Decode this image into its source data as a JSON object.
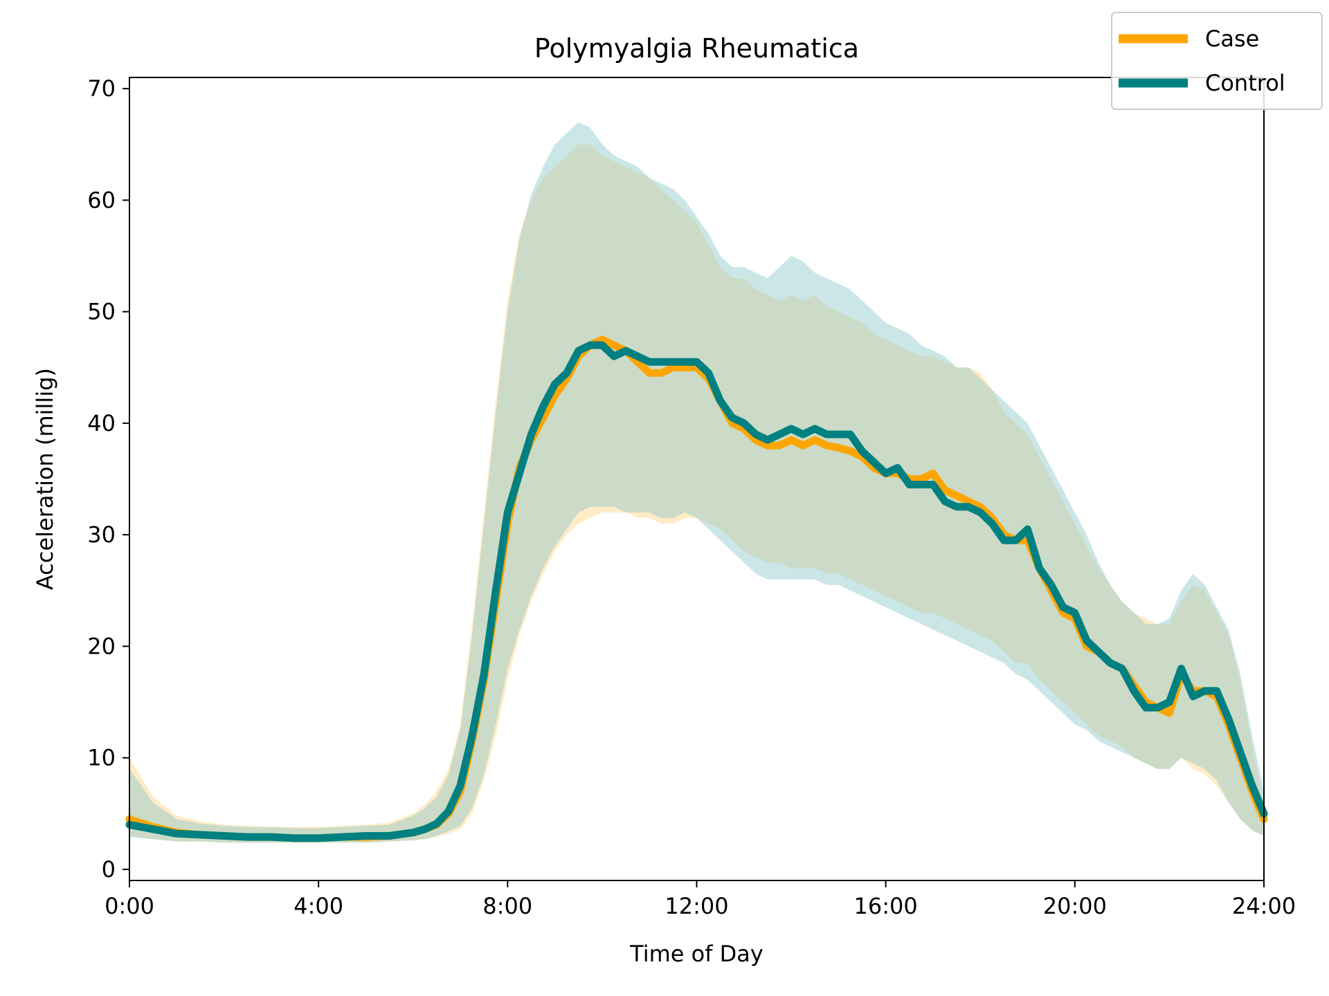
{
  "chart_data": {
    "type": "line",
    "title": "Polymyalgia Rheumatica",
    "xlabel": "Time of Day",
    "ylabel": "Acceleration (millig)",
    "xlim": [
      0,
      24
    ],
    "ylim": [
      -1,
      71
    ],
    "x_ticks": [
      0,
      4,
      8,
      12,
      16,
      20,
      24
    ],
    "x_tick_labels": [
      "0:00",
      "4:00",
      "8:00",
      "12:00",
      "16:00",
      "20:00",
      "24:00"
    ],
    "y_ticks": [
      0,
      10,
      20,
      30,
      40,
      50,
      60,
      70
    ],
    "y_tick_labels": [
      "0",
      "10",
      "20",
      "30",
      "40",
      "50",
      "60",
      "70"
    ],
    "grid": false,
    "legend_position": "top-right",
    "series": [
      {
        "name": "Case",
        "color": "#FFA500",
        "x": [
          0,
          0.5,
          1,
          1.5,
          2,
          2.5,
          3,
          3.5,
          4,
          4.5,
          5,
          5.5,
          6,
          6.25,
          6.5,
          6.75,
          7,
          7.25,
          7.5,
          7.75,
          8,
          8.25,
          8.5,
          8.75,
          9,
          9.25,
          9.5,
          9.75,
          10,
          10.25,
          10.5,
          10.75,
          11,
          11.25,
          11.5,
          11.75,
          12,
          12.25,
          12.5,
          12.75,
          13,
          13.25,
          13.5,
          13.75,
          14,
          14.25,
          14.5,
          14.75,
          15,
          15.25,
          15.5,
          15.75,
          16,
          16.25,
          16.5,
          16.75,
          17,
          17.25,
          17.5,
          17.75,
          18,
          18.25,
          18.5,
          18.75,
          19,
          19.25,
          19.5,
          19.75,
          20,
          20.25,
          20.5,
          20.75,
          21,
          21.25,
          21.5,
          21.75,
          22,
          22.25,
          22.5,
          22.75,
          23,
          23.25,
          23.5,
          23.75,
          24
        ],
        "y": [
          4.5,
          3.8,
          3.3,
          3.1,
          3.0,
          2.9,
          2.9,
          2.8,
          2.8,
          2.9,
          2.9,
          3.0,
          3.3,
          3.6,
          4.0,
          5.0,
          7.0,
          11.5,
          17.0,
          24.0,
          31.0,
          36.0,
          38.5,
          40.5,
          42.5,
          44.0,
          46.0,
          47.0,
          47.5,
          47.0,
          46.5,
          45.5,
          44.5,
          44.5,
          45.0,
          45.0,
          45.0,
          44.0,
          42.0,
          40.0,
          39.5,
          38.5,
          38.0,
          38.0,
          38.5,
          38.0,
          38.5,
          38.0,
          37.8,
          37.5,
          37.0,
          36.0,
          35.5,
          35.5,
          35.0,
          35.0,
          35.5,
          34.0,
          33.5,
          33.0,
          32.5,
          31.5,
          30.0,
          29.5,
          29.5,
          27.0,
          25.0,
          23.0,
          22.5,
          20.0,
          19.5,
          18.5,
          18.0,
          16.5,
          15.0,
          14.5,
          14.0,
          17.5,
          16.0,
          16.0,
          15.5,
          13.0,
          10.0,
          7.0,
          4.5
        ]
      },
      {
        "name": "Control",
        "color": "#008080",
        "x": [
          0,
          0.5,
          1,
          1.5,
          2,
          2.5,
          3,
          3.5,
          4,
          4.5,
          5,
          5.5,
          6,
          6.25,
          6.5,
          6.75,
          7,
          7.25,
          7.5,
          7.75,
          8,
          8.25,
          8.5,
          8.75,
          9,
          9.25,
          9.5,
          9.75,
          10,
          10.25,
          10.5,
          10.75,
          11,
          11.25,
          11.5,
          11.75,
          12,
          12.25,
          12.5,
          12.75,
          13,
          13.25,
          13.5,
          13.75,
          14,
          14.25,
          14.5,
          14.75,
          15,
          15.25,
          15.5,
          15.75,
          16,
          16.25,
          16.5,
          16.75,
          17,
          17.25,
          17.5,
          17.75,
          18,
          18.25,
          18.5,
          18.75,
          19,
          19.25,
          19.5,
          19.75,
          20,
          20.25,
          20.5,
          20.75,
          21,
          21.25,
          21.5,
          21.75,
          22,
          22.25,
          22.5,
          22.75,
          23,
          23.25,
          23.5,
          23.75,
          24
        ],
        "y": [
          4.0,
          3.6,
          3.2,
          3.1,
          3.0,
          2.9,
          2.9,
          2.8,
          2.8,
          2.9,
          3.0,
          3.0,
          3.3,
          3.6,
          4.1,
          5.2,
          7.5,
          12.0,
          17.5,
          25.0,
          32.0,
          35.5,
          39.0,
          41.5,
          43.5,
          44.5,
          46.5,
          47.0,
          47.0,
          46.0,
          46.5,
          46.0,
          45.5,
          45.5,
          45.5,
          45.5,
          45.5,
          44.5,
          42.0,
          40.5,
          40.0,
          39.0,
          38.5,
          39.0,
          39.5,
          39.0,
          39.5,
          39.0,
          39.0,
          39.0,
          37.5,
          36.5,
          35.5,
          36.0,
          34.5,
          34.5,
          34.5,
          33.0,
          32.5,
          32.5,
          32.0,
          31.0,
          29.5,
          29.5,
          30.5,
          27.0,
          25.5,
          23.5,
          23.0,
          20.5,
          19.5,
          18.5,
          18.0,
          16.0,
          14.5,
          14.5,
          15.0,
          18.0,
          15.5,
          16.0,
          16.0,
          13.5,
          10.5,
          7.5,
          5.0
        ]
      }
    ],
    "bands": [
      {
        "name": "Case",
        "color": "#FFD580",
        "opacity": 0.45,
        "x": [
          0,
          0.5,
          1,
          1.5,
          2,
          2.5,
          3,
          3.5,
          4,
          4.5,
          5,
          5.5,
          6,
          6.25,
          6.5,
          6.75,
          7,
          7.25,
          7.5,
          7.75,
          8,
          8.25,
          8.5,
          8.75,
          9,
          9.25,
          9.5,
          9.75,
          10,
          10.25,
          10.5,
          10.75,
          11,
          11.25,
          11.5,
          11.75,
          12,
          12.25,
          12.5,
          12.75,
          13,
          13.25,
          13.5,
          13.75,
          14,
          14.25,
          14.5,
          14.75,
          15,
          15.25,
          15.5,
          15.75,
          16,
          16.25,
          16.5,
          16.75,
          17,
          17.25,
          17.5,
          17.75,
          18,
          18.25,
          18.5,
          18.75,
          19,
          19.25,
          19.5,
          19.75,
          20,
          20.25,
          20.5,
          20.75,
          21,
          21.25,
          21.5,
          21.75,
          22,
          22.25,
          22.5,
          22.75,
          23,
          23.25,
          23.5,
          23.75,
          24
        ],
        "upper": [
          10.0,
          6.5,
          4.8,
          4.3,
          4.0,
          3.9,
          3.8,
          3.8,
          3.8,
          3.9,
          4.0,
          4.2,
          5.0,
          5.8,
          7.0,
          9.0,
          13.0,
          22.0,
          32.0,
          42.0,
          51.0,
          57.0,
          60.0,
          62.0,
          63.0,
          64.0,
          65.0,
          65.0,
          64.0,
          63.5,
          63.0,
          62.5,
          62.0,
          61.0,
          60.0,
          59.0,
          58.0,
          56.0,
          54.0,
          53.0,
          53.0,
          52.0,
          51.5,
          51.0,
          51.5,
          51.0,
          51.5,
          50.5,
          50.0,
          49.5,
          49.0,
          48.0,
          47.5,
          47.0,
          46.5,
          46.0,
          46.0,
          45.5,
          45.0,
          45.0,
          44.5,
          43.0,
          41.0,
          40.0,
          39.0,
          37.0,
          35.0,
          33.0,
          31.0,
          29.0,
          27.0,
          25.5,
          24.0,
          23.0,
          22.5,
          22.0,
          22.0,
          24.0,
          25.5,
          25.0,
          23.0,
          21.0,
          17.0,
          11.0,
          6.0
        ],
        "lower": [
          3.0,
          2.7,
          2.5,
          2.5,
          2.4,
          2.4,
          2.4,
          2.4,
          2.4,
          2.4,
          2.4,
          2.5,
          2.6,
          2.7,
          2.9,
          3.2,
          3.6,
          5.0,
          8.0,
          12.0,
          17.0,
          21.0,
          24.0,
          26.5,
          28.5,
          30.0,
          31.0,
          31.5,
          32.0,
          32.0,
          32.0,
          31.5,
          31.5,
          31.0,
          31.0,
          31.5,
          31.5,
          31.0,
          30.5,
          29.5,
          28.5,
          28.0,
          27.5,
          27.5,
          27.0,
          27.0,
          27.0,
          26.5,
          26.5,
          26.0,
          25.5,
          25.0,
          24.5,
          24.0,
          23.5,
          23.0,
          23.0,
          22.5,
          22.0,
          21.5,
          21.0,
          20.5,
          19.5,
          18.5,
          18.5,
          17.0,
          16.0,
          15.0,
          14.0,
          13.0,
          12.0,
          11.5,
          11.0,
          10.0,
          9.5,
          9.0,
          9.0,
          10.0,
          9.0,
          8.5,
          7.5,
          6.0,
          4.5,
          3.5,
          3.0
        ]
      },
      {
        "name": "Control",
        "color": "#8CC8C8",
        "opacity": 0.45,
        "x": [
          0,
          0.5,
          1,
          1.5,
          2,
          2.5,
          3,
          3.5,
          4,
          4.5,
          5,
          5.5,
          6,
          6.25,
          6.5,
          6.75,
          7,
          7.25,
          7.5,
          7.75,
          8,
          8.25,
          8.5,
          8.75,
          9,
          9.25,
          9.5,
          9.75,
          10,
          10.25,
          10.5,
          10.75,
          11,
          11.25,
          11.5,
          11.75,
          12,
          12.25,
          12.5,
          12.75,
          13,
          13.25,
          13.5,
          13.75,
          14,
          14.25,
          14.5,
          14.75,
          15,
          15.25,
          15.5,
          15.75,
          16,
          16.25,
          16.5,
          16.75,
          17,
          17.25,
          17.5,
          17.75,
          18,
          18.25,
          18.5,
          18.75,
          19,
          19.25,
          19.5,
          19.75,
          20,
          20.25,
          20.5,
          20.75,
          21,
          21.25,
          21.5,
          21.75,
          22,
          22.25,
          22.5,
          22.75,
          23,
          23.25,
          23.5,
          23.75,
          24
        ],
        "upper": [
          9.0,
          6.0,
          4.5,
          4.1,
          3.9,
          3.8,
          3.8,
          3.7,
          3.7,
          3.8,
          3.9,
          4.0,
          4.8,
          5.5,
          6.5,
          8.5,
          12.5,
          21.0,
          31.0,
          41.0,
          50.0,
          56.5,
          60.5,
          63.0,
          65.0,
          66.0,
          67.0,
          66.5,
          65.0,
          64.0,
          63.5,
          63.0,
          62.0,
          61.5,
          61.0,
          60.0,
          58.5,
          57.0,
          55.0,
          54.0,
          54.0,
          53.5,
          53.0,
          54.0,
          55.0,
          54.5,
          53.5,
          53.0,
          52.5,
          52.0,
          51.0,
          50.0,
          49.0,
          48.5,
          48.0,
          47.0,
          46.5,
          46.0,
          45.0,
          45.0,
          44.0,
          43.0,
          42.0,
          41.0,
          40.0,
          38.0,
          36.0,
          34.0,
          32.0,
          30.0,
          27.5,
          25.5,
          24.0,
          23.0,
          22.0,
          22.0,
          22.5,
          25.0,
          26.5,
          25.5,
          23.5,
          21.5,
          17.5,
          12.0,
          7.0
        ],
        "lower": [
          2.9,
          2.7,
          2.5,
          2.5,
          2.4,
          2.4,
          2.4,
          2.4,
          2.4,
          2.4,
          2.4,
          2.5,
          2.6,
          2.7,
          3.0,
          3.4,
          3.9,
          5.5,
          8.5,
          13.0,
          18.0,
          21.5,
          24.5,
          27.0,
          29.0,
          30.5,
          32.0,
          32.5,
          32.5,
          32.5,
          32.0,
          32.0,
          32.0,
          31.5,
          31.5,
          32.0,
          31.5,
          30.5,
          29.5,
          28.5,
          27.5,
          26.5,
          26.0,
          26.0,
          26.0,
          26.0,
          26.0,
          25.5,
          25.5,
          25.0,
          24.5,
          24.0,
          23.5,
          23.0,
          22.5,
          22.0,
          21.5,
          21.0,
          20.5,
          20.0,
          19.5,
          19.0,
          18.5,
          17.5,
          17.0,
          16.0,
          15.0,
          14.0,
          13.0,
          12.5,
          11.5,
          11.0,
          10.5,
          10.0,
          9.5,
          9.0,
          9.0,
          10.0,
          9.5,
          9.0,
          8.0,
          6.0,
          4.5,
          3.5,
          3.0
        ]
      }
    ]
  }
}
